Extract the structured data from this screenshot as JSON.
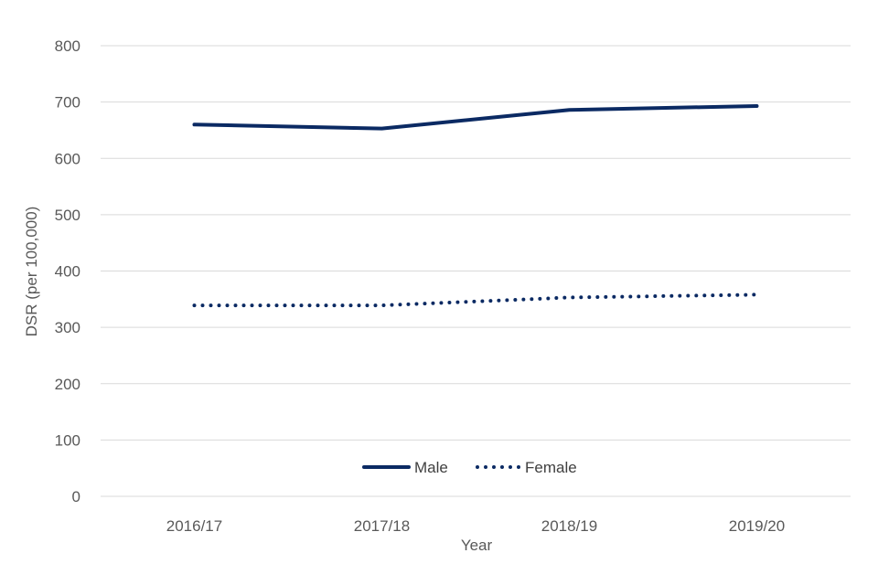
{
  "chart_data": {
    "type": "line",
    "categories": [
      "2016/17",
      "2017/18",
      "2018/19",
      "2019/20"
    ],
    "series": [
      {
        "name": "Male",
        "values": [
          660,
          653,
          686,
          693
        ],
        "color": "#0b2a63",
        "style": "solid"
      },
      {
        "name": "Female",
        "values": [
          339,
          339,
          353,
          358
        ],
        "color": "#0b2a63",
        "style": "dotted"
      }
    ],
    "xlabel": "Year",
    "ylabel": "DSR (per 100,000)",
    "ylim": [
      0,
      800
    ],
    "yticks": [
      0,
      100,
      200,
      300,
      400,
      500,
      600,
      700,
      800
    ],
    "grid": true,
    "legend_position": "bottom-center"
  }
}
